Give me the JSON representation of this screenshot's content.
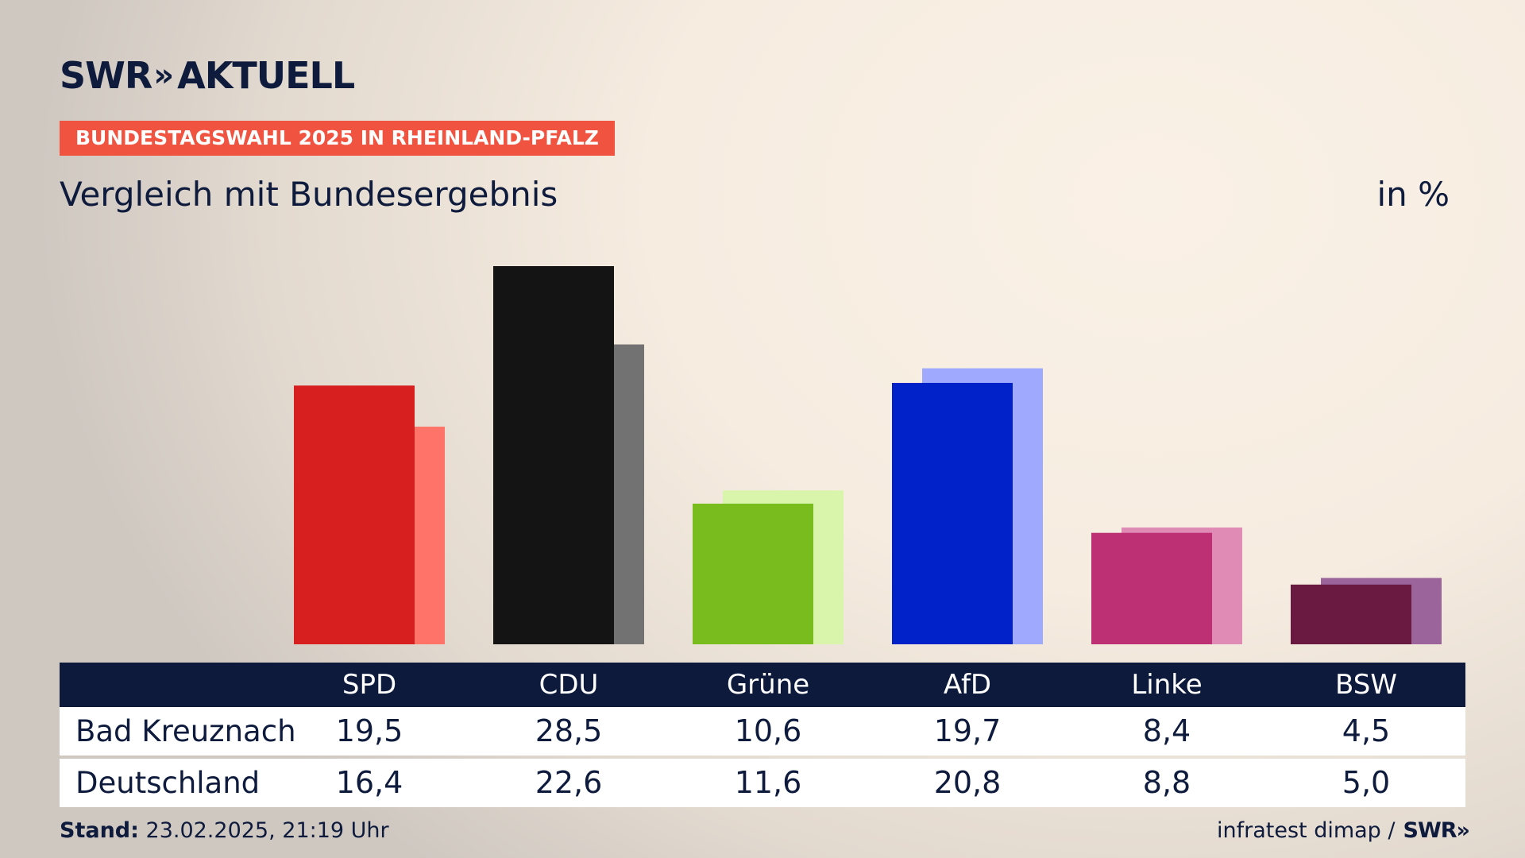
{
  "header": {
    "logo_text": "SWR",
    "logo_chevrons": "»",
    "logo_suffix": "AKTUELL",
    "tag": "BUNDESTAGSWAHL 2025 IN RHEINLAND-PFALZ",
    "subtitle": "Vergleich mit Bundesergebnis",
    "unit": "in %"
  },
  "chart_data": {
    "type": "bar",
    "title": "Vergleich mit Bundesergebnis",
    "ylabel": "in %",
    "categories": [
      "SPD",
      "CDU",
      "Grüne",
      "AfD",
      "Linke",
      "BSW"
    ],
    "series": [
      {
        "name": "Bad Kreuznach",
        "values": [
          19.5,
          28.5,
          10.6,
          19.7,
          8.4,
          4.5
        ],
        "labels": [
          "19,5",
          "28,5",
          "10,6",
          "19,7",
          "8,4",
          "4,5"
        ],
        "colors": [
          "#d71f1f",
          "#141414",
          "#78bc1e",
          "#0022c8",
          "#bd3073",
          "#6a1a40"
        ]
      },
      {
        "name": "Deutschland",
        "values": [
          16.4,
          22.6,
          11.6,
          20.8,
          8.8,
          5.0
        ],
        "labels": [
          "16,4",
          "22,6",
          "11,6",
          "20,8",
          "8,8",
          "5,0"
        ],
        "colors": [
          "#ff7369",
          "#727272",
          "#d8f5ab",
          "#9faaff",
          "#e08ab6",
          "#9b659c"
        ]
      }
    ],
    "ylim": [
      0,
      28.5
    ],
    "grid": false,
    "legend": "none"
  },
  "footer": {
    "stand_label": "Stand:",
    "stand_value": "23.02.2025, 21:19 Uhr",
    "source": "infratest dimap /",
    "source_logo": "SWR",
    "source_logo_chevrons": "»"
  }
}
